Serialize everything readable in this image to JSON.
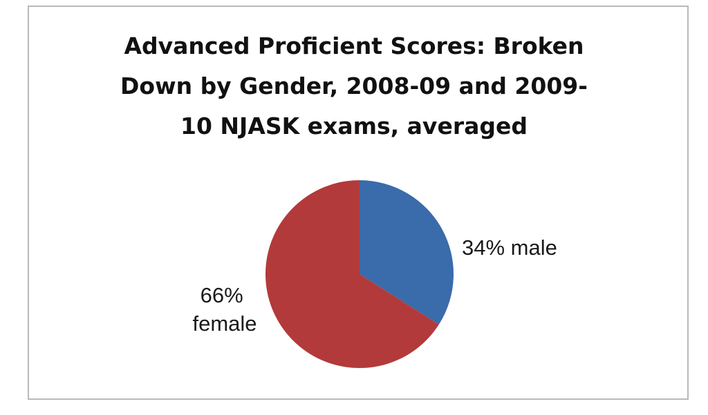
{
  "chart_data": {
    "type": "pie",
    "title_lines": [
      "Advanced Proficient Scores: Broken",
      "Down by Gender, 2008-09 and 2009-",
      "10 NJASK exams, averaged"
    ],
    "slices": [
      {
        "name": "male",
        "value": 34,
        "color": "#3a6bab",
        "label_lines": [
          "34% male"
        ]
      },
      {
        "name": "female",
        "value": 66,
        "color": "#b33a3a",
        "label_lines": [
          "66%",
          "female"
        ]
      }
    ]
  }
}
